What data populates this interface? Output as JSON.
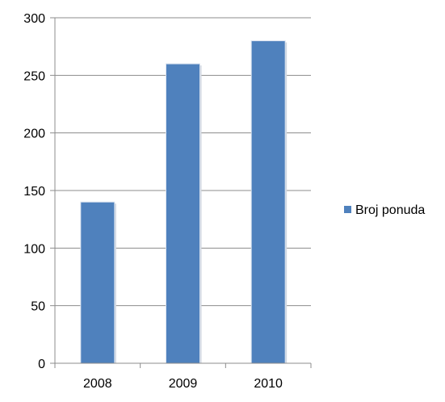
{
  "chart_data": {
    "type": "bar",
    "categories": [
      "2008",
      "2009",
      "2010"
    ],
    "series": [
      {
        "name": "Broj ponuda",
        "values": [
          140,
          260,
          280
        ],
        "color": "#4F81BD"
      }
    ],
    "ylim": [
      0,
      300
    ],
    "yticks": [
      "0",
      "50",
      "100",
      "150",
      "200",
      "250",
      "300"
    ],
    "grid": true,
    "legend": "right"
  }
}
